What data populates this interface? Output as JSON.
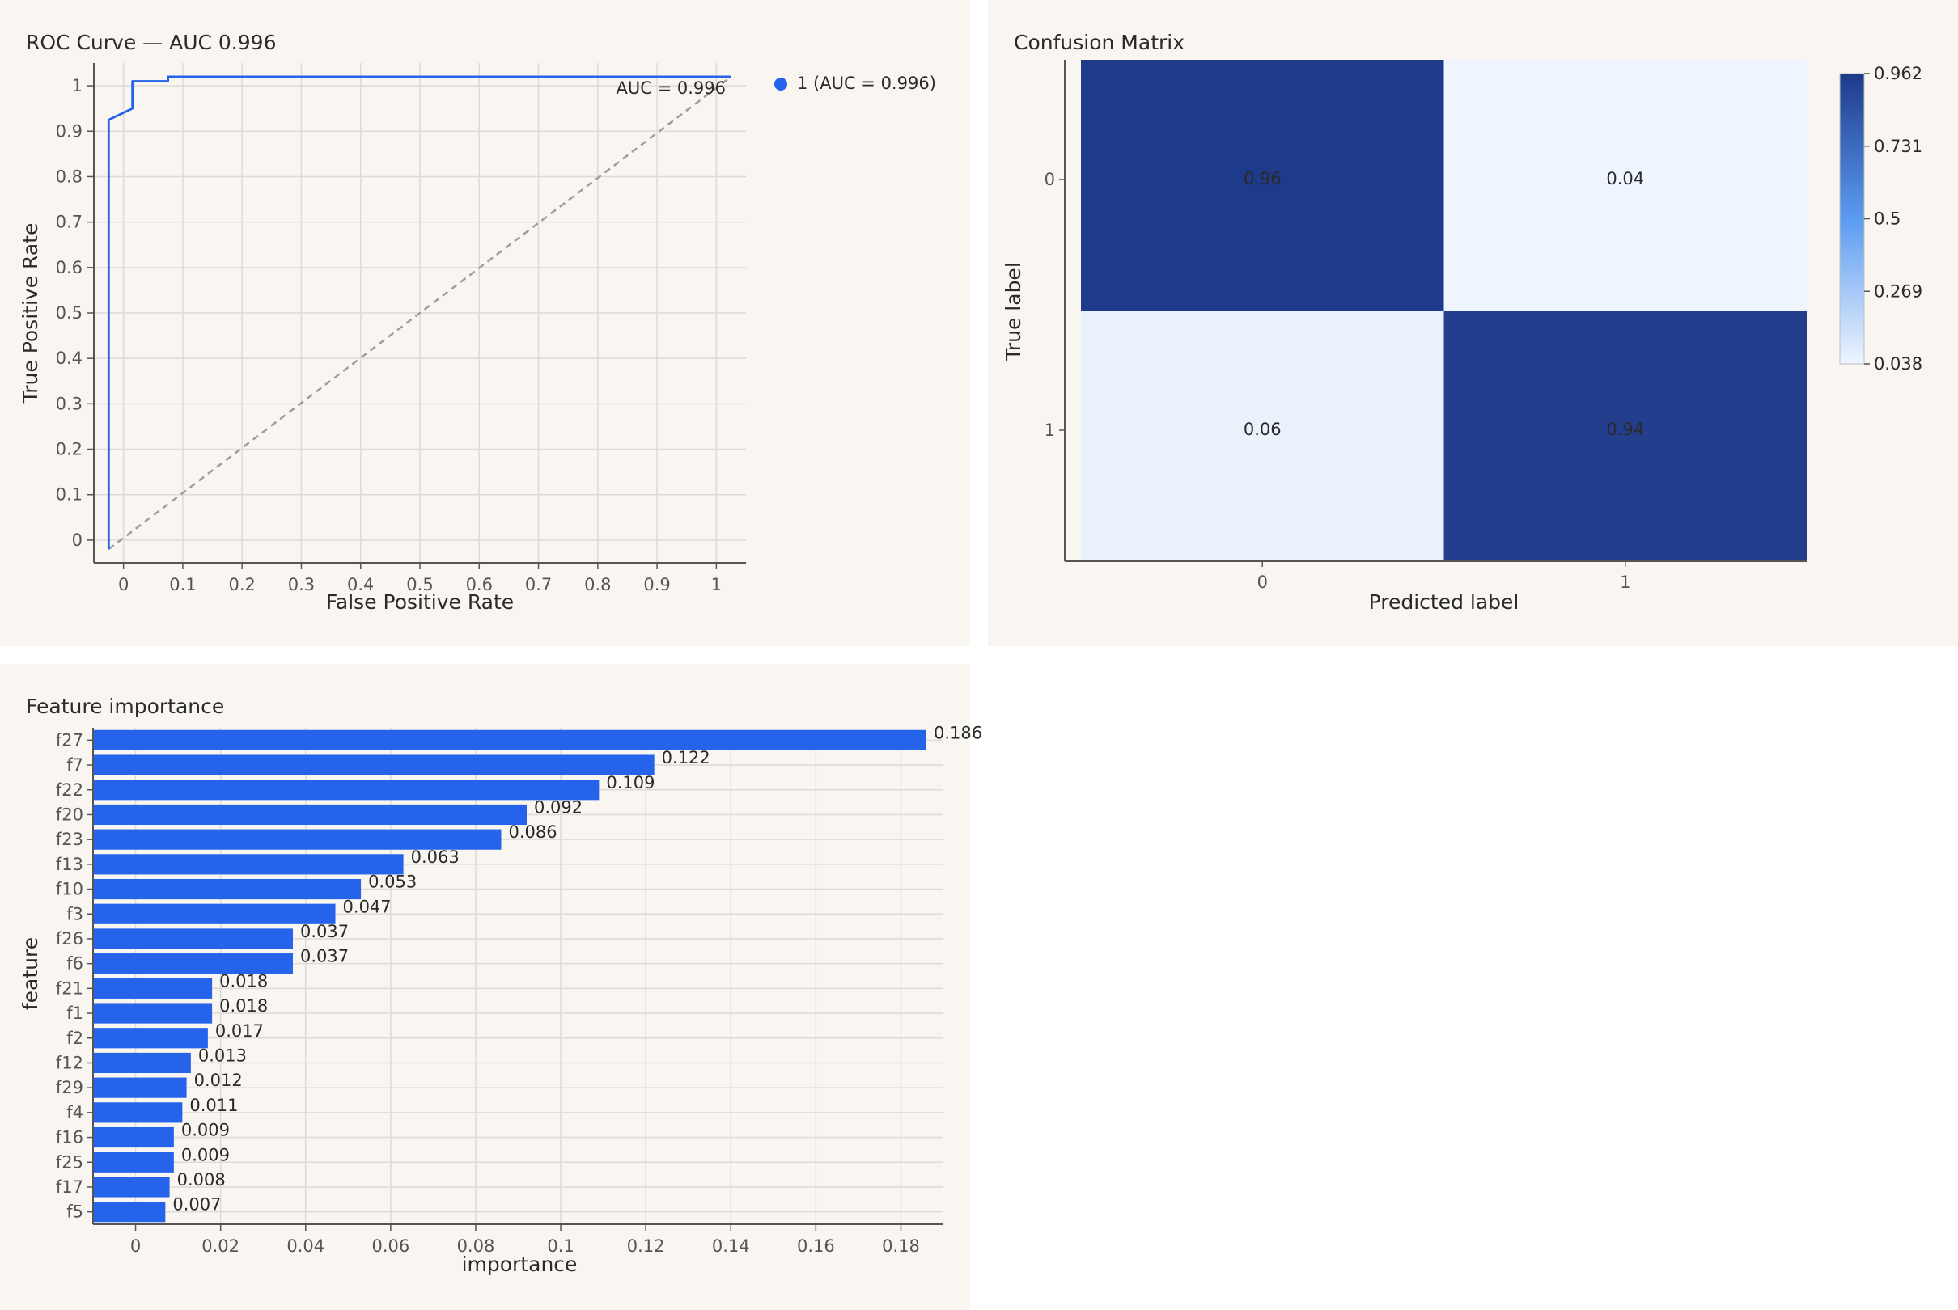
{
  "colors": {
    "panel_bg": "#f9f6f1",
    "bar": "#2563eb",
    "roc_line": "#2563eb",
    "diagonal": "#9e9e9e",
    "grid": "#dedad4",
    "axis": "#555555",
    "heat_high": "#1e3a8a",
    "heat_low": "#eef5fe"
  },
  "panels": {
    "roc_title": "ROC Curve — AUC 0.996",
    "cm_title": "Confusion Matrix",
    "fi_title": "Feature importance"
  },
  "chart_data": [
    {
      "type": "line",
      "title": "ROC Curve — AUC 0.996",
      "xlabel": "False Positive Rate",
      "ylabel": "True Positive Rate",
      "xlim": [
        -0.05,
        1.05
      ],
      "ylim": [
        -0.05,
        1.05
      ],
      "xticks": [
        0,
        0.1,
        0.2,
        0.3,
        0.4,
        0.5,
        0.6,
        0.7,
        0.8,
        0.9,
        1
      ],
      "yticks": [
        0,
        0.1,
        0.2,
        0.3,
        0.4,
        0.5,
        0.6,
        0.7,
        0.8,
        0.9,
        1
      ],
      "grid": true,
      "annotation": "AUC = 0.996",
      "legend": {
        "position": "right",
        "entries": [
          "1 (AUC = 0.996)"
        ]
      },
      "series": [
        {
          "name": "1 (AUC = 0.996)",
          "x": [
            -0.025,
            -0.025,
            -0.025,
            0.015,
            0.015,
            0.075,
            0.075,
            1.025
          ],
          "y": [
            -0.02,
            0.925,
            0.925,
            0.95,
            1.01,
            1.01,
            1.02,
            1.02
          ]
        },
        {
          "name": "chance",
          "style": "dashed",
          "x": [
            -0.025,
            1.025
          ],
          "y": [
            -0.02,
            1.02
          ]
        }
      ]
    },
    {
      "type": "heatmap",
      "title": "Confusion Matrix",
      "xlabel": "Predicted label",
      "ylabel": "True label",
      "x_categories": [
        "0",
        "1"
      ],
      "y_categories": [
        "0",
        "1"
      ],
      "values": [
        [
          0.96,
          0.04
        ],
        [
          0.06,
          0.94
        ]
      ],
      "colorbar": {
        "min": 0.038,
        "max": 0.962,
        "ticks": [
          "0.962",
          "0.731",
          "0.5",
          "0.269",
          "0.038"
        ]
      }
    },
    {
      "type": "bar",
      "orientation": "horizontal",
      "title": "Feature importance",
      "xlabel": "importance",
      "ylabel": "feature",
      "xlim": [
        -0.01,
        0.19
      ],
      "xticks": [
        0,
        0.02,
        0.04,
        0.06,
        0.08,
        0.1,
        0.12,
        0.14,
        0.16,
        0.18
      ],
      "grid": true,
      "categories": [
        "f27",
        "f7",
        "f22",
        "f20",
        "f23",
        "f13",
        "f10",
        "f3",
        "f26",
        "f6",
        "f21",
        "f1",
        "f2",
        "f12",
        "f29",
        "f4",
        "f16",
        "f25",
        "f17",
        "f5"
      ],
      "values": [
        0.186,
        0.122,
        0.109,
        0.092,
        0.086,
        0.063,
        0.053,
        0.047,
        0.037,
        0.037,
        0.018,
        0.018,
        0.017,
        0.013,
        0.012,
        0.011,
        0.009,
        0.009,
        0.008,
        0.007
      ],
      "labels": [
        "0.186",
        "0.122",
        "0.109",
        "0.092",
        "0.086",
        "0.063",
        "0.053",
        "0.047",
        "0.037",
        "0.037",
        "0.018",
        "0.018",
        "0.017",
        "0.013",
        "0.012",
        "0.011",
        "0.009",
        "0.009",
        "0.008",
        "0.007"
      ]
    }
  ]
}
